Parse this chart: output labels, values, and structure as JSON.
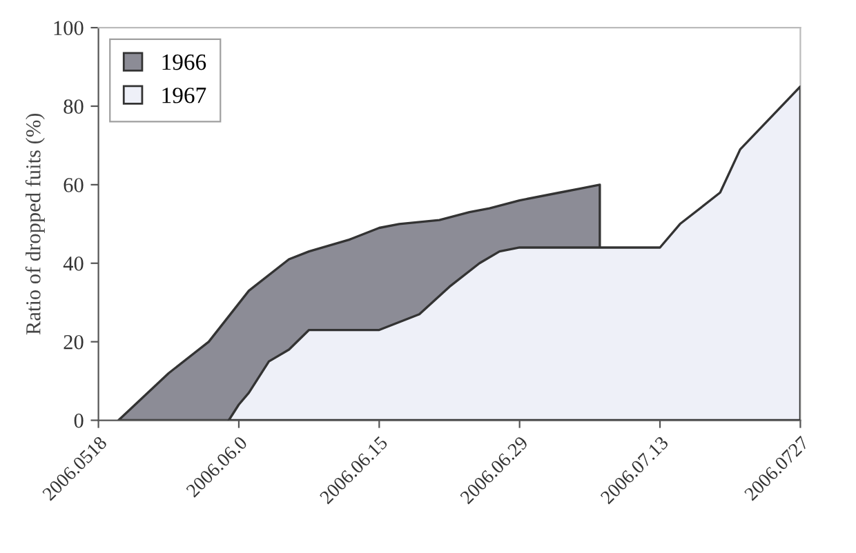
{
  "chart_data": {
    "type": "area",
    "ylabel": "Ratio of dropped fuits (%)",
    "xlim": [
      "2006-05-18",
      "2006-07-27"
    ],
    "xticks": [
      {
        "value": "2006-05-18",
        "label": "2006.0518"
      },
      {
        "value": "2006-06-01",
        "label": "2006.06.0"
      },
      {
        "value": "2006-06-15",
        "label": "2006.06.15"
      },
      {
        "value": "2006-06-29",
        "label": "2006.06.29"
      },
      {
        "value": "2006-07-13",
        "label": "2006.07.13"
      },
      {
        "value": "2006-07-27",
        "label": "2006.0727"
      }
    ],
    "ylim": [
      0,
      100
    ],
    "yticks": [
      0,
      20,
      40,
      60,
      80,
      100
    ],
    "grid": false,
    "legend": "top left",
    "series": [
      {
        "name": "1966",
        "color": "#8c8c96",
        "x": [
          "2006-05-20",
          "2006-05-25",
          "2006-05-29",
          "2006-06-02",
          "2006-06-06",
          "2006-06-08",
          "2006-06-12",
          "2006-06-15",
          "2006-06-17",
          "2006-06-21",
          "2006-06-24",
          "2006-06-26",
          "2006-06-29",
          "2006-07-03",
          "2006-07-05",
          "2006-07-07"
        ],
        "values": [
          0,
          12,
          20,
          33,
          41,
          43,
          46,
          49,
          50,
          51,
          53,
          54,
          56,
          58,
          59,
          60
        ]
      },
      {
        "name": "1967",
        "color": "#eef0f8",
        "x": [
          "2006-05-31",
          "2006-06-01",
          "2006-06-02",
          "2006-06-04",
          "2006-06-06",
          "2006-06-08",
          "2006-06-15",
          "2006-06-19",
          "2006-06-22",
          "2006-06-25",
          "2006-06-27",
          "2006-06-29",
          "2006-07-13",
          "2006-07-15",
          "2006-07-19",
          "2006-07-21",
          "2006-07-27"
        ],
        "values": [
          0,
          4,
          7,
          15,
          18,
          23,
          23,
          27,
          34,
          40,
          43,
          44,
          44,
          50,
          58,
          69,
          85
        ]
      }
    ]
  }
}
